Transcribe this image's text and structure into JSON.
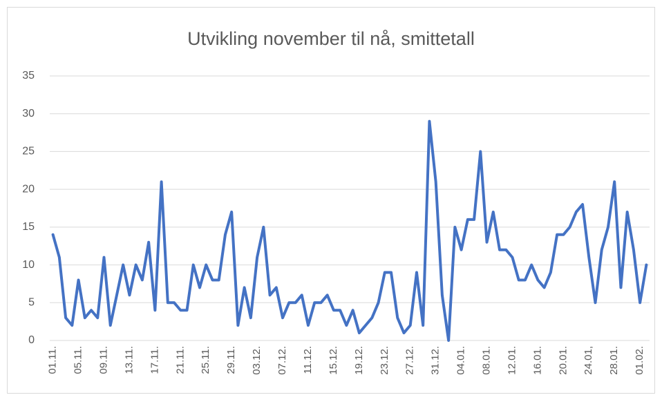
{
  "chart_data": {
    "type": "line",
    "title": "Utvikling november til nå, smittetall",
    "categories": [
      "01.11.",
      null,
      null,
      null,
      "05.11.",
      null,
      null,
      null,
      "09.11.",
      null,
      null,
      null,
      "13.11.",
      null,
      null,
      null,
      "17.11.",
      null,
      null,
      null,
      "21.11.",
      null,
      null,
      null,
      "25.11.",
      null,
      null,
      null,
      "29.11.",
      null,
      null,
      null,
      "03.12.",
      null,
      null,
      null,
      "07.12.",
      null,
      null,
      null,
      "11.12.",
      null,
      null,
      null,
      "15.12.",
      null,
      null,
      null,
      "19.12.",
      null,
      null,
      null,
      "23.12.",
      null,
      null,
      null,
      "27.12.",
      null,
      null,
      null,
      "31.12.",
      null,
      null,
      null,
      "04.01.",
      null,
      null,
      null,
      "08.01.",
      null,
      null,
      null,
      "12.01.",
      null,
      null,
      null,
      "16.01.",
      null,
      null,
      null,
      "20.01.",
      null,
      null,
      null,
      "24.01,",
      null,
      null,
      null,
      "28.01.",
      null,
      null,
      null,
      "01.02.",
      null
    ],
    "values": [
      14,
      11,
      3,
      2,
      8,
      3,
      4,
      3,
      11,
      2,
      6,
      10,
      6,
      10,
      8,
      13,
      4,
      21,
      5,
      5,
      4,
      4,
      10,
      7,
      10,
      8,
      8,
      14,
      17,
      2,
      7,
      3,
      11,
      15,
      6,
      7,
      3,
      5,
      5,
      6,
      2,
      5,
      5,
      6,
      4,
      4,
      2,
      4,
      1,
      2,
      3,
      5,
      9,
      9,
      3,
      1,
      2,
      9,
      2,
      29,
      21,
      6,
      0,
      15,
      12,
      16,
      16,
      25,
      13,
      17,
      12,
      12,
      11,
      8,
      8,
      10,
      8,
      7,
      9,
      14,
      14,
      15,
      17,
      18,
      11,
      5,
      12,
      15,
      21,
      7,
      17,
      12,
      5,
      10
    ],
    "color": "#4472c4",
    "ylim": [
      0,
      35
    ],
    "yticks": [
      0,
      5,
      10,
      15,
      20,
      25,
      30,
      35
    ],
    "grid": true
  }
}
